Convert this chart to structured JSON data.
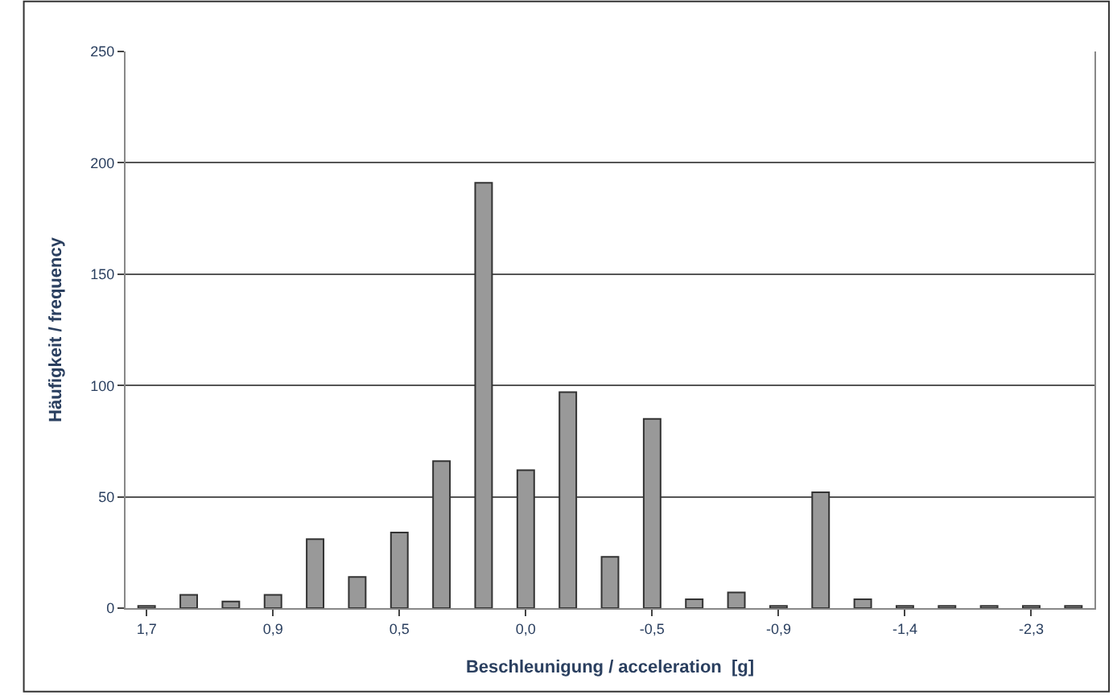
{
  "chart_data": {
    "type": "bar",
    "xlabel": "Beschleunigung / acceleration  [g]",
    "ylabel": "Häufigkeit / frequency",
    "categories": [
      "1,7",
      null,
      null,
      "0,9",
      null,
      null,
      "0,5",
      null,
      null,
      "0,0",
      null,
      null,
      "-0,5",
      null,
      null,
      "-0,9",
      null,
      null,
      "-1,4",
      null,
      null,
      "-2,3",
      null
    ],
    "values": [
      1,
      6,
      3,
      6,
      31,
      14,
      34,
      66,
      191,
      62,
      97,
      23,
      85,
      4,
      7,
      1,
      52,
      4,
      1,
      1,
      1,
      1,
      1
    ],
    "color": "#999999",
    "ylim": [
      0,
      250
    ],
    "yticks": [
      0,
      50,
      100,
      150,
      200,
      250
    ],
    "grid": "y",
    "legend": false
  }
}
